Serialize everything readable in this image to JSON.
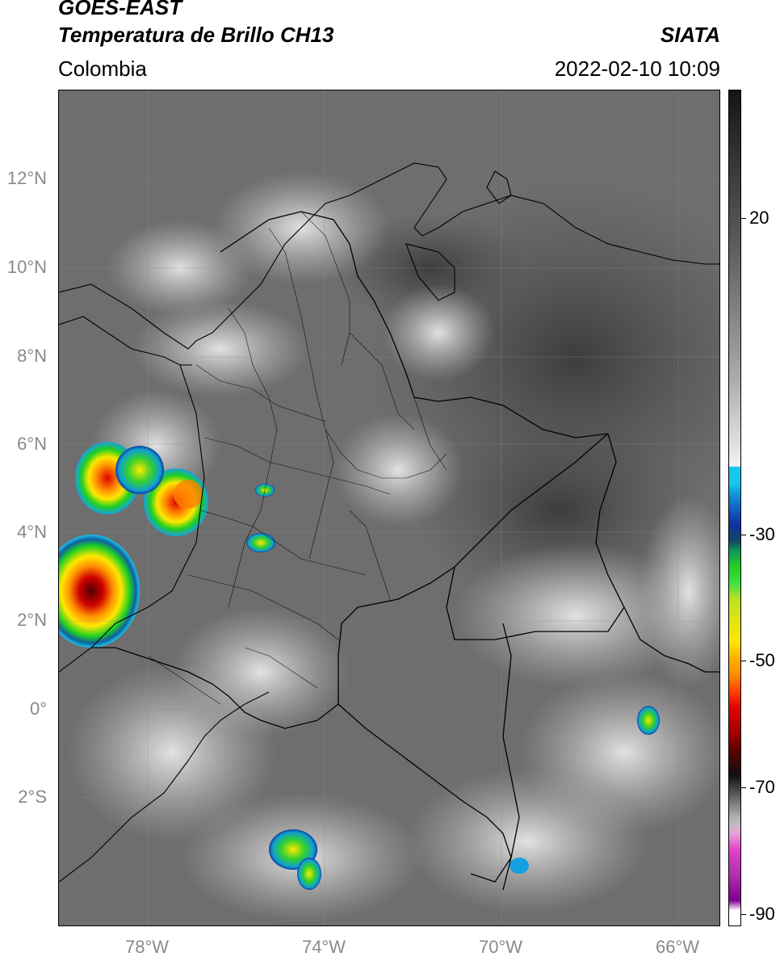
{
  "header": {
    "title": "GOES-EAST",
    "subtitle": "Temperatura de Brillo CH13",
    "region": "Colombia",
    "organization": "SIATA",
    "datetime": "2022-02-10 10:09"
  },
  "axes": {
    "lat_labels": [
      "12°N",
      "10°N",
      "8°N",
      "6°N",
      "4°N",
      "2°N",
      "0°",
      "2°S"
    ],
    "lon_labels": [
      "78°W",
      "74°W",
      "70°W",
      "66°W"
    ]
  },
  "colorbar": {
    "labels": [
      "20",
      "-30",
      "-50",
      "-70",
      "-90"
    ],
    "colors": {
      "cyan": "#16c8f0",
      "blue": "#1030a0",
      "green": "#20d020",
      "yellow": "#ffe800",
      "orange": "#ff8c00",
      "red": "#e00000",
      "darkred": "#600000",
      "magenta": "#e040c8",
      "purple": "#800090"
    }
  }
}
